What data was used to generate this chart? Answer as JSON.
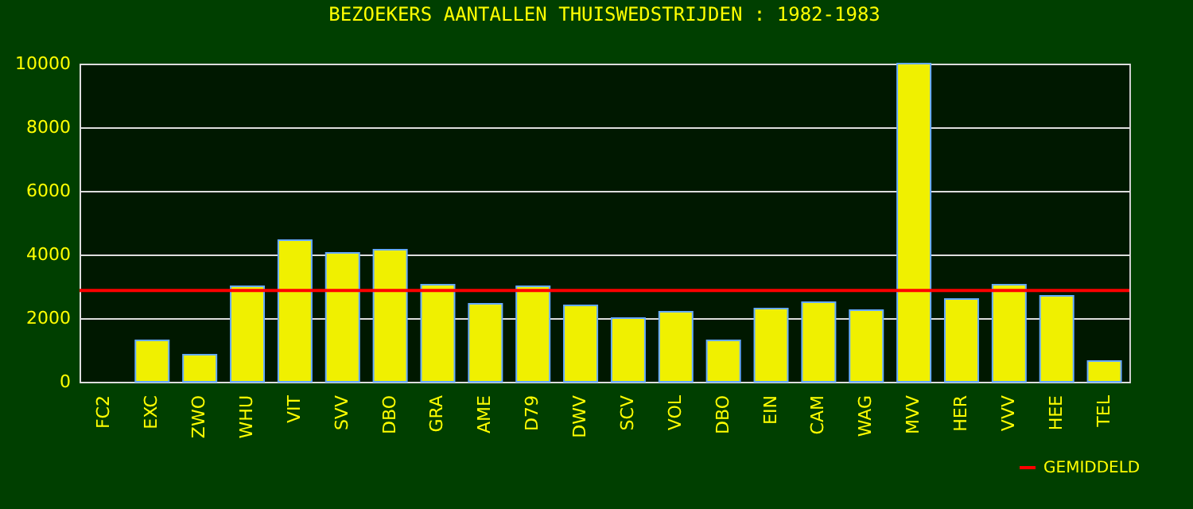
{
  "chart_data": {
    "type": "bar",
    "title": "BEZOEKERS AANTALLEN THUISWEDSTRIJDEN : 1982-1983",
    "categories": [
      "FC2",
      "EXC",
      "ZWO",
      "WHU",
      "VIT",
      "SVV",
      "DBO",
      "GRA",
      "AME",
      "D79",
      "DWV",
      "SCV",
      "VOL",
      "DBO",
      "EIN",
      "CAM",
      "WAG",
      "MVV",
      "HER",
      "VVV",
      "HEE",
      "TEL"
    ],
    "values": [
      null,
      1300,
      850,
      3000,
      4450,
      4050,
      4150,
      3050,
      2450,
      3000,
      2400,
      2000,
      2200,
      1300,
      2300,
      2500,
      2250,
      10000,
      2600,
      3050,
      2700,
      650
    ],
    "color": "#f0f000",
    "ylim": [
      0,
      10000
    ],
    "yticks": [
      0,
      2000,
      4000,
      6000,
      8000,
      10000
    ],
    "grid": "y",
    "ref_lines": [
      {
        "axis": "y",
        "value": 2870,
        "label": "GEMIDDELD",
        "color": "#ff0000"
      }
    ],
    "legend": "bottom right"
  }
}
